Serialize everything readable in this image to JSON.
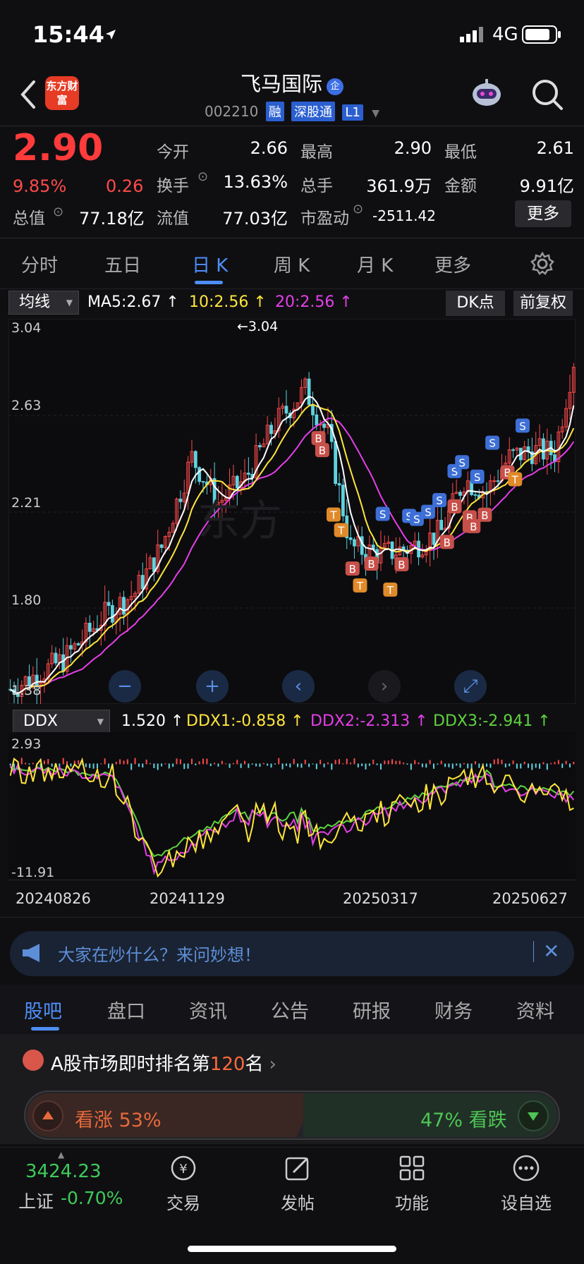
{
  "status": {
    "time": "15:44",
    "network": "4G"
  },
  "header": {
    "logo_text": "东方财富",
    "name": "飞马国际",
    "cert_badge": "企",
    "code": "002210",
    "tags": [
      "融",
      "深股通",
      "L1"
    ]
  },
  "quote": {
    "price": "2.90",
    "change_pct": "9.85%",
    "change": "0.26",
    "total_value_label": "总值",
    "total_value": "77.18亿",
    "fields": [
      {
        "label": "今开",
        "value": "2.66",
        "color": "red"
      },
      {
        "label": "最高",
        "value": "2.90",
        "color": "red"
      },
      {
        "label": "最低",
        "value": "2.61",
        "color": "green"
      },
      {
        "label": "换手",
        "value": "13.63%",
        "color": "white"
      },
      {
        "label": "总手",
        "value": "361.9万",
        "color": "white"
      },
      {
        "label": "金额",
        "value": "9.91亿",
        "color": "white"
      },
      {
        "label": "流值",
        "value": "77.03亿",
        "color": "white"
      },
      {
        "label": "市盈动",
        "value": "-2511.42",
        "color": "white"
      }
    ],
    "more_label": "更多"
  },
  "kline_tabs": [
    "分时",
    "五日",
    "日 K",
    "周 K",
    "月 K",
    "更多"
  ],
  "kline_active": 2,
  "ma_indicator": {
    "selector": "均线",
    "ma5": "MA5:2.67",
    "ma10": "10:2.56",
    "ma20": "20:2.56",
    "dk_btn": "DK点",
    "fq_btn": "前复权"
  },
  "price_axis": {
    "top": "3.04",
    "l2": "2.63",
    "l3": "2.21",
    "l4": "1.80",
    "bottom": "1.38",
    "high_marker": "3.04"
  },
  "ddx_indicator": {
    "selector": "DDX",
    "ddx": "1.520",
    "ddx1": "DDX1:-0.858",
    "ddx2": "DDX2:-2.313",
    "ddx3": "DDX3:-2.941",
    "axis_top": "2.93",
    "axis_bottom": "-11.91"
  },
  "dates": [
    "20240826",
    "20241129",
    "20250317",
    "20250627"
  ],
  "banner": {
    "text": "大家在炒什么？来问妙想！"
  },
  "bottom_tabs": [
    "股吧",
    "盘口",
    "资讯",
    "公告",
    "研报",
    "财务",
    "资料"
  ],
  "ranking": {
    "prefix": "A股市场即时排名第",
    "rank": "120",
    "suffix": "名"
  },
  "vote": {
    "up_label": "看涨",
    "up_pct": "53%",
    "down_pct": "47%",
    "down_label": "看跌",
    "up_share": 0.53
  },
  "index": {
    "value": "3424.23",
    "name": "上证",
    "change": "-0.70%"
  },
  "nav": [
    "交易",
    "发帖",
    "功能",
    "设自选"
  ],
  "colors": {
    "up": "#ff4a4a",
    "down": "#39c84e",
    "accent": "#4e8ef7",
    "ma5": "#ffffff",
    "ma10": "#ffe53b",
    "ma20": "#e43fe6"
  }
}
